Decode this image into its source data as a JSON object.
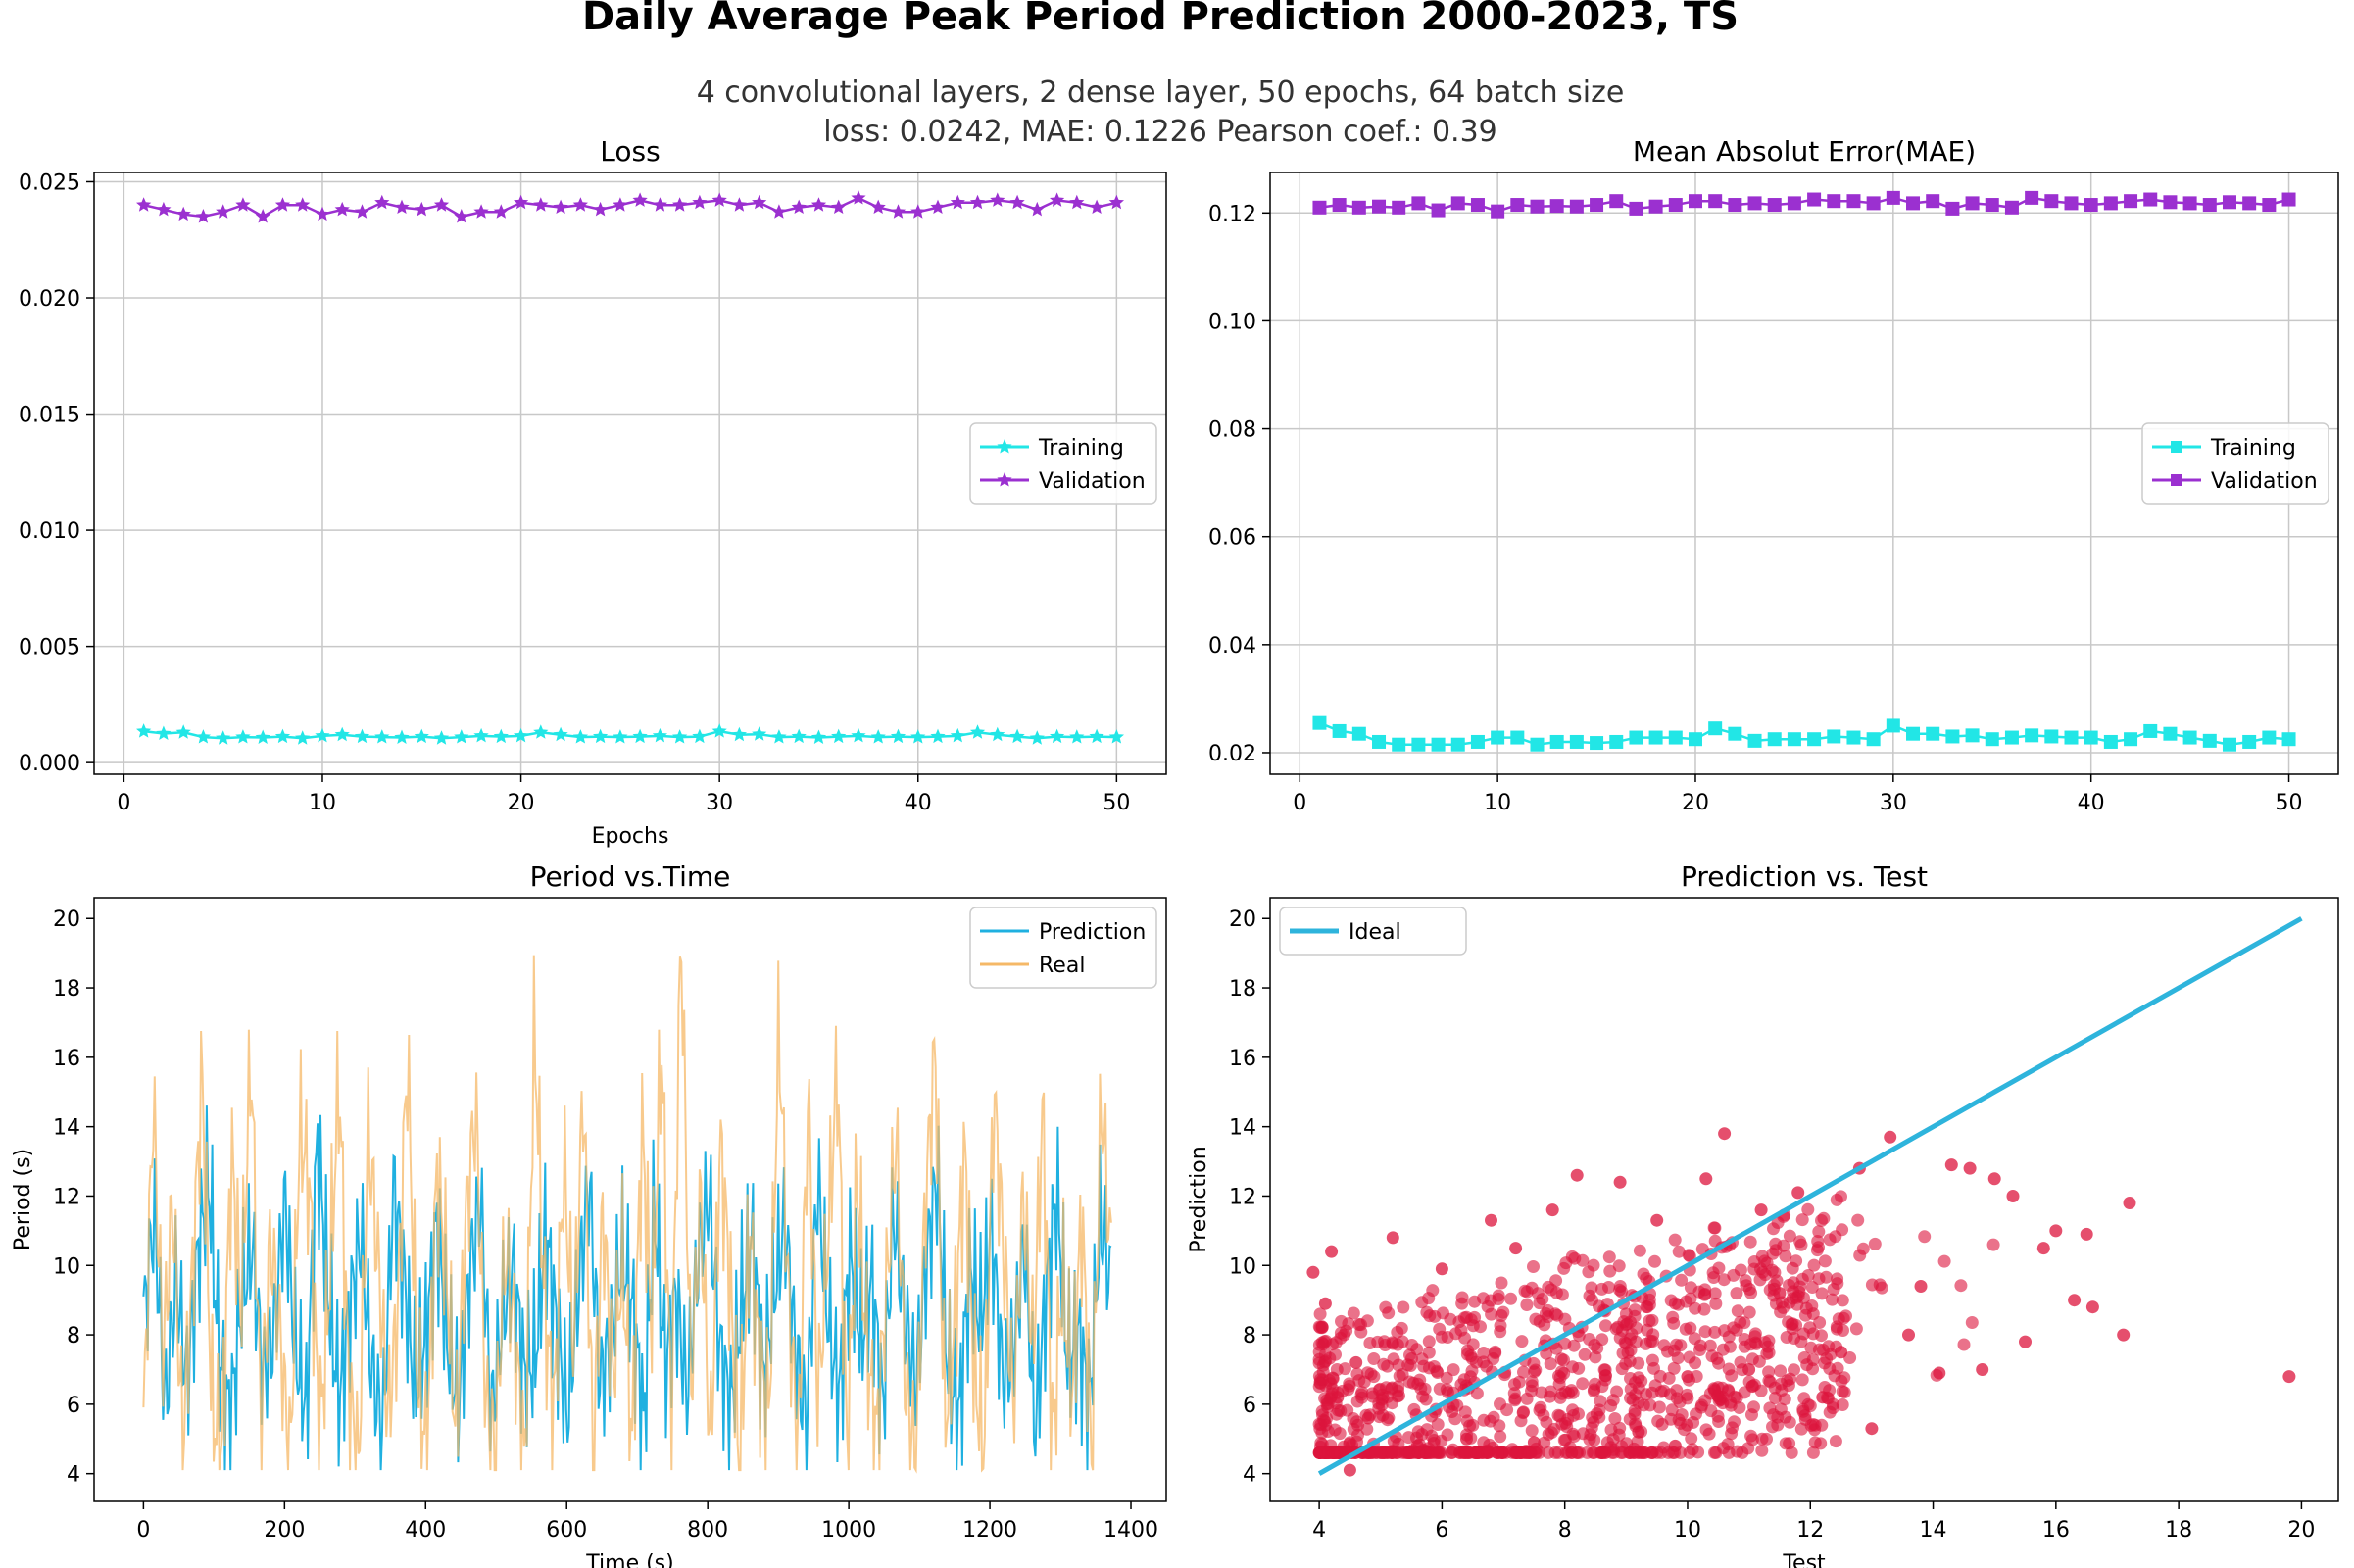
{
  "figure": {
    "title": "Daily Average Peak Period Prediction 2000-2023, TS",
    "subtitle_line1": "4 convolutional layers, 2 dense layer, 50 epochs, 64 batch size",
    "subtitle_line2": "loss: 0.0242, MAE: 0.1226   Pearson coef.: 0.39"
  },
  "colors": {
    "training": "#22e6e6",
    "validation": "#9b30d0",
    "prediction": "#1fb0e0",
    "real": "#f5b867",
    "overlap": "#6d9c78",
    "ideal": "#2eb4dc",
    "scatter": "#dc143c",
    "grid": "#c8c8c8",
    "axis": "#000000"
  },
  "chart_data": [
    {
      "type": "line",
      "title": "Loss",
      "xlabel": "Epochs",
      "ylabel": "",
      "xlim": [
        -1.5,
        52.5
      ],
      "ylim": [
        -0.0005,
        0.0254
      ],
      "xticks": [
        0,
        10,
        20,
        30,
        40,
        50
      ],
      "yticks": [
        0.0,
        0.005,
        0.01,
        0.015,
        0.02,
        0.025
      ],
      "ytick_labels": [
        "0.000",
        "0.005",
        "0.010",
        "0.015",
        "0.020",
        "0.025"
      ],
      "grid": true,
      "legend_position": "center-right",
      "marker": "star",
      "x": [
        1,
        2,
        3,
        4,
        5,
        6,
        7,
        8,
        9,
        10,
        11,
        12,
        13,
        14,
        15,
        16,
        17,
        18,
        19,
        20,
        21,
        22,
        23,
        24,
        25,
        26,
        27,
        28,
        29,
        30,
        31,
        32,
        33,
        34,
        35,
        36,
        37,
        38,
        39,
        40,
        41,
        42,
        43,
        44,
        45,
        46,
        47,
        48,
        49,
        50
      ],
      "series": [
        {
          "name": "Training",
          "color_key": "training",
          "values": [
            0.00135,
            0.00125,
            0.0013,
            0.0011,
            0.00105,
            0.0011,
            0.00108,
            0.00112,
            0.00105,
            0.00115,
            0.0012,
            0.00112,
            0.0011,
            0.00108,
            0.00112,
            0.00105,
            0.0011,
            0.00115,
            0.00112,
            0.00115,
            0.0013,
            0.0012,
            0.0011,
            0.00112,
            0.0011,
            0.00112,
            0.00115,
            0.0011,
            0.00112,
            0.00135,
            0.0012,
            0.00122,
            0.0011,
            0.00112,
            0.00108,
            0.00112,
            0.00115,
            0.0011,
            0.00112,
            0.0011,
            0.00112,
            0.00115,
            0.0013,
            0.0012,
            0.00112,
            0.00105,
            0.00112,
            0.0011,
            0.00112,
            0.0011
          ]
        },
        {
          "name": "Validation",
          "color_key": "validation",
          "values": [
            0.024,
            0.0238,
            0.0236,
            0.0235,
            0.0237,
            0.024,
            0.0235,
            0.024,
            0.024,
            0.0236,
            0.0238,
            0.0237,
            0.0241,
            0.0239,
            0.0238,
            0.024,
            0.0235,
            0.0237,
            0.0237,
            0.0241,
            0.024,
            0.0239,
            0.024,
            0.0238,
            0.024,
            0.0242,
            0.024,
            0.024,
            0.0241,
            0.0242,
            0.024,
            0.0241,
            0.0237,
            0.0239,
            0.024,
            0.0239,
            0.0243,
            0.0239,
            0.0237,
            0.0237,
            0.0239,
            0.0241,
            0.0241,
            0.0242,
            0.0241,
            0.0238,
            0.0242,
            0.0241,
            0.0239,
            0.0241
          ]
        }
      ]
    },
    {
      "type": "line",
      "title": "Mean Absolut Error(MAE)",
      "xlabel": "",
      "ylabel": "",
      "xlim": [
        -1.5,
        52.5
      ],
      "ylim": [
        0.016,
        0.1275
      ],
      "xticks": [
        0,
        10,
        20,
        30,
        40,
        50
      ],
      "yticks": [
        0.02,
        0.04,
        0.06,
        0.08,
        0.1,
        0.12
      ],
      "ytick_labels": [
        "0.02",
        "0.04",
        "0.06",
        "0.08",
        "0.10",
        "0.12"
      ],
      "grid": true,
      "legend_position": "center-right",
      "marker": "square",
      "x": [
        1,
        2,
        3,
        4,
        5,
        6,
        7,
        8,
        9,
        10,
        11,
        12,
        13,
        14,
        15,
        16,
        17,
        18,
        19,
        20,
        21,
        22,
        23,
        24,
        25,
        26,
        27,
        28,
        29,
        30,
        31,
        32,
        33,
        34,
        35,
        36,
        37,
        38,
        39,
        40,
        41,
        42,
        43,
        44,
        45,
        46,
        47,
        48,
        49,
        50
      ],
      "series": [
        {
          "name": "Training",
          "color_key": "training",
          "values": [
            0.0255,
            0.024,
            0.0235,
            0.022,
            0.0215,
            0.0215,
            0.0215,
            0.0215,
            0.022,
            0.0228,
            0.0228,
            0.0215,
            0.022,
            0.022,
            0.0218,
            0.022,
            0.0228,
            0.0228,
            0.0228,
            0.0225,
            0.0245,
            0.0235,
            0.0222,
            0.0225,
            0.0225,
            0.0225,
            0.023,
            0.0228,
            0.0225,
            0.025,
            0.0235,
            0.0235,
            0.023,
            0.0232,
            0.0225,
            0.0228,
            0.0232,
            0.023,
            0.0228,
            0.0228,
            0.022,
            0.0225,
            0.024,
            0.0235,
            0.0228,
            0.0222,
            0.0215,
            0.022,
            0.0228,
            0.0225
          ]
        },
        {
          "name": "Validation",
          "color_key": "validation",
          "values": [
            0.121,
            0.1215,
            0.121,
            0.1212,
            0.121,
            0.1218,
            0.1205,
            0.1218,
            0.1215,
            0.1203,
            0.1215,
            0.1212,
            0.1213,
            0.1212,
            0.1215,
            0.1222,
            0.1208,
            0.1212,
            0.1215,
            0.1222,
            0.1222,
            0.1215,
            0.1218,
            0.1215,
            0.1218,
            0.1225,
            0.1222,
            0.1222,
            0.1218,
            0.1228,
            0.1218,
            0.1222,
            0.1208,
            0.1218,
            0.1215,
            0.121,
            0.1228,
            0.1222,
            0.1218,
            0.1215,
            0.1218,
            0.1222,
            0.1225,
            0.122,
            0.1218,
            0.1215,
            0.122,
            0.1218,
            0.1215,
            0.1225
          ]
        }
      ]
    },
    {
      "type": "line",
      "title": "Period vs.Time",
      "xlabel": "Time (s)",
      "ylabel": "Period (s)",
      "xlim": [
        -70,
        1450
      ],
      "ylim": [
        3.2,
        20.6
      ],
      "xticks": [
        0,
        200,
        400,
        600,
        800,
        1000,
        1200,
        1400
      ],
      "yticks": [
        4,
        6,
        8,
        10,
        12,
        14,
        16,
        18,
        20
      ],
      "grid": false,
      "legend_position": "top-right",
      "x_range": [
        0,
        1372
      ],
      "series": [
        {
          "name": "Prediction",
          "color_key": "prediction",
          "samples": [
            8.4,
            11.5,
            5.9,
            9.7,
            6.6,
            10.3,
            12.6,
            7.2,
            5.5,
            9.0,
            10.6,
            6.8,
            8.1,
            11.9,
            7.5,
            5.8,
            13.6,
            9.2,
            6.1,
            8.8,
            10.9,
            7.0,
            5.3,
            12.3,
            9.5,
            6.4,
            8.0,
            11.2,
            7.7,
            6.0,
            9.8,
            12.0,
            5.6,
            8.5,
            10.0,
            6.9,
            7.3,
            11.0,
            8.2,
            5.7,
            9.4,
            12.4,
            6.6,
            7.9,
            10.5,
            8.7,
            5.4,
            11.7,
            7.1,
            9.1,
            6.3,
            10.2,
            12.1,
            7.6,
            5.9,
            8.9,
            10.8,
            6.7,
            9.3,
            11.3,
            7.4,
            5.5,
            12.5,
            8.3,
            6.2,
            10.4,
            7.8,
            9.6,
            5.8,
            11.6,
            8.6,
            6.5,
            10.1,
            12.6,
            7.0,
            5.6,
            9.9,
            8.4,
            11.1,
            6.8,
            7.5,
            10.7,
            5.3,
            9.0,
            12.2,
            7.2,
            8.0,
            6.0,
            11.4,
            9.4
          ]
        },
        {
          "name": "Real",
          "color_key": "real",
          "samples": [
            5.2,
            14.8,
            7.3,
            11.9,
            4.9,
            9.6,
            15.6,
            6.0,
            4.4,
            13.3,
            8.7,
            16.2,
            5.4,
            10.8,
            7.9,
            4.3,
            14.1,
            12.2,
            5.0,
            9.3,
            15.4,
            6.6,
            4.2,
            13.9,
            10.1,
            5.7,
            8.5,
            16.0,
            7.0,
            4.5,
            12.7,
            9.8,
            5.1,
            11.4,
            14.6,
            6.2,
            4.8,
            10.5,
            8.1,
            4.1,
            17.0,
            9.0,
            5.6,
            13.0,
            7.6,
            15.2,
            4.4,
            11.6,
            6.8,
            10.2,
            4.9,
            14.0,
            8.4,
            16.4,
            5.3,
            19.8,
            6.5,
            12.0,
            4.6,
            13.6,
            9.5,
            4.2,
            11.1,
            7.2,
            5.8,
            17.1,
            8.9,
            4.7,
            14.9,
            6.1,
            10.7,
            15.8,
            4.4,
            12.5,
            7.7,
            5.0,
            9.2,
            13.8,
            6.4,
            4.5,
            11.8,
            16.3,
            5.5,
            8.2,
            13.4,
            6.9,
            4.6,
            15.0,
            10.4,
            5.9,
            12.1,
            7.4,
            14.5,
            4.8,
            9.7,
            6.3,
            11.5,
            4.5,
            14.8,
            10.1
          ]
        }
      ]
    },
    {
      "type": "scatter",
      "title": "Prediction vs. Test",
      "xlabel": "Test",
      "ylabel": "Prediction",
      "xlim": [
        3.2,
        20.6
      ],
      "ylim": [
        3.2,
        20.6
      ],
      "xticks": [
        4,
        6,
        8,
        10,
        12,
        14,
        16,
        18,
        20
      ],
      "yticks": [
        4,
        6,
        8,
        10,
        12,
        14,
        16,
        18,
        20
      ],
      "grid": false,
      "legend_position": "top-left",
      "ideal_line": {
        "name": "Ideal",
        "from": [
          4,
          4
        ],
        "to": [
          20,
          20
        ]
      },
      "points": [
        [
          4.5,
          4.1
        ],
        [
          19.8,
          6.8
        ],
        [
          17.2,
          11.8
        ],
        [
          17.1,
          8.0
        ],
        [
          16.6,
          8.8
        ],
        [
          16.5,
          10.9
        ],
        [
          16.3,
          9.0
        ],
        [
          16.0,
          11.0
        ],
        [
          15.8,
          10.5
        ],
        [
          15.5,
          7.8
        ],
        [
          15.3,
          12.0
        ],
        [
          15.0,
          12.5
        ],
        [
          14.8,
          7.0
        ],
        [
          14.6,
          12.8
        ],
        [
          14.3,
          12.9
        ],
        [
          14.1,
          6.9
        ],
        [
          13.8,
          9.4
        ],
        [
          13.6,
          8.0
        ],
        [
          13.3,
          13.7
        ],
        [
          13.0,
          5.3
        ],
        [
          12.8,
          12.8
        ],
        [
          12.5,
          7.5
        ],
        [
          12.2,
          6.2
        ],
        [
          11.8,
          12.1
        ],
        [
          11.5,
          9.2
        ],
        [
          11.2,
          11.6
        ],
        [
          11.0,
          7.0
        ],
        [
          10.6,
          13.8
        ],
        [
          10.3,
          12.5
        ],
        [
          10.0,
          6.8
        ],
        [
          9.8,
          4.8
        ],
        [
          9.5,
          11.3
        ],
        [
          9.2,
          5.2
        ],
        [
          8.9,
          12.4
        ],
        [
          8.6,
          4.6
        ],
        [
          8.2,
          12.6
        ],
        [
          7.8,
          11.6
        ],
        [
          7.5,
          4.9
        ],
        [
          7.2,
          10.5
        ],
        [
          6.8,
          11.3
        ],
        [
          6.4,
          5.0
        ],
        [
          6.0,
          9.9
        ],
        [
          5.6,
          4.8
        ],
        [
          5.2,
          10.8
        ],
        [
          4.8,
          5.6
        ],
        [
          4.3,
          6.2
        ],
        [
          4.1,
          8.9
        ],
        [
          3.9,
          9.8
        ],
        [
          4.2,
          10.4
        ],
        [
          4.6,
          7.2
        ]
      ]
    }
  ]
}
